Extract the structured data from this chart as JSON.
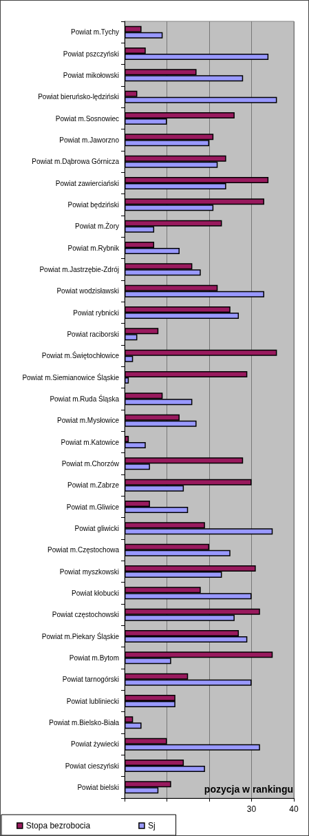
{
  "chart_data": {
    "type": "bar",
    "orientation": "horizontal",
    "xlabel": "pozycja w rankingu",
    "categories": [
      "Powiat m.Tychy",
      "Powiat pszczyński",
      "Powiat mikołowski",
      "Powiat bieruńsko-lędziński",
      "Powiat m.Sosnowiec",
      "Powiat m.Jaworzno",
      "Powiat m.Dąbrowa Górnicza",
      "Powiat zawierciański",
      "Powiat będziński",
      "Powiat m.Żory",
      "Powiat m.Rybnik",
      "Powiat m.Jastrzębie-Zdrój",
      "Powiat wodzisławski",
      "Powiat rybnicki",
      "Powiat raciborski",
      "Powiat m.Świętochłowice",
      "Powiat m.Siemianowice Śląskie",
      "Powiat m.Ruda Śląska",
      "Powiat m.Mysłowice",
      "Powiat m.Katowice",
      "Powiat m.Chorzów",
      "Powiat m.Zabrze",
      "Powiat m.Gliwice",
      "Powiat gliwicki",
      "Powiat m.Częstochowa",
      "Powiat myszkowski",
      "Powiat kłobucki",
      "Powiat częstochowski",
      "Powiat m.Piekary Śląskie",
      "Powiat m.Bytom",
      "Powiat tarnogórski",
      "Powiat lubliniecki",
      "Powiat m.Bielsko-Biała",
      "Powiat żywiecki",
      "Powiat cieszyński",
      "Powiat bielski"
    ],
    "series": [
      {
        "name": "Stopa bezrobocia",
        "color": "#991a5e",
        "values": [
          4,
          5,
          17,
          3,
          26,
          21,
          24,
          34,
          33,
          23,
          7,
          16,
          22,
          25,
          8,
          36,
          29,
          9,
          13,
          1,
          28,
          30,
          6,
          19,
          20,
          31,
          18,
          32,
          27,
          35,
          15,
          12,
          2,
          10,
          14,
          11
        ]
      },
      {
        "name": "Sj",
        "color": "#9999ff",
        "values": [
          9,
          34,
          28,
          36,
          10,
          20,
          22,
          24,
          21,
          7,
          13,
          18,
          33,
          27,
          3,
          2,
          1,
          16,
          17,
          5,
          6,
          14,
          15,
          35,
          25,
          23,
          30,
          26,
          29,
          11,
          30,
          12,
          4,
          32,
          19,
          8
        ]
      }
    ],
    "xlim": [
      0,
      40
    ],
    "xticks": [
      {
        "value": 0,
        "label": null
      },
      {
        "value": 10,
        "label": null
      },
      {
        "value": 20,
        "label": null
      },
      30,
      40
    ],
    "grid": "x",
    "legend": "bottom left"
  }
}
